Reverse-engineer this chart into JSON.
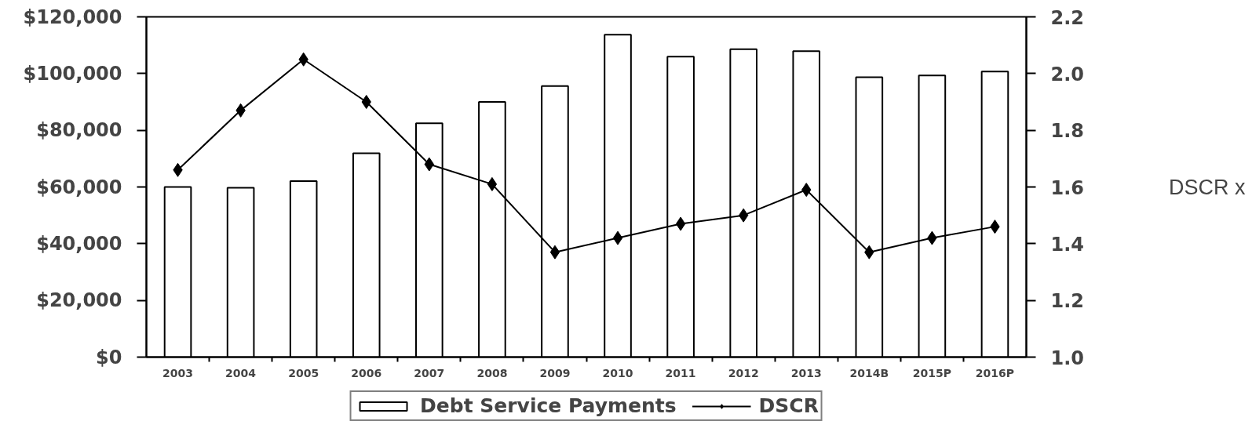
{
  "chart_data": {
    "type": "bar",
    "categories": [
      "2003",
      "2004",
      "2005",
      "2006",
      "2007",
      "2008",
      "2009",
      "2010",
      "2011",
      "2012",
      "2013",
      "2014B",
      "2015P",
      "2016P"
    ],
    "series": [
      {
        "name": "Debt Service Payments",
        "color": "#ffffff",
        "values": [
          60000,
          59700,
          62100,
          71900,
          82500,
          90000,
          95600,
          113700,
          106000,
          108600,
          107900,
          98700,
          99300,
          100700
        ]
      },
      {
        "name": "DSCR",
        "type": "line",
        "axis": "y2",
        "color": "#000000",
        "values": [
          1.66,
          1.87,
          2.05,
          1.9,
          1.68,
          1.61,
          1.37,
          1.42,
          1.47,
          1.5,
          1.59,
          1.37,
          1.42,
          1.46
        ]
      }
    ],
    "y2label": "DSCR x",
    "ylim": [
      0,
      120000
    ],
    "yticks": [
      {
        "value": 0,
        "label": "$0"
      },
      {
        "value": 20000,
        "label": "$20,000"
      },
      {
        "value": 40000,
        "label": "$40,000"
      },
      {
        "value": 60000,
        "label": "$60,000"
      },
      {
        "value": 80000,
        "label": "$80,000"
      },
      {
        "value": 100000,
        "label": "$100,000"
      },
      {
        "value": 120000,
        "label": "$120,000"
      }
    ],
    "y2lim": [
      1,
      2.2
    ],
    "y2ticks": [
      {
        "value": 1,
        "label": "1.0"
      },
      1.2,
      1.4,
      1.6,
      1.8,
      {
        "value": 2,
        "label": "2.0"
      },
      2.2
    ],
    "grid": false,
    "legend": "bottom",
    "marker": "diamond",
    "line_style": "solid"
  }
}
